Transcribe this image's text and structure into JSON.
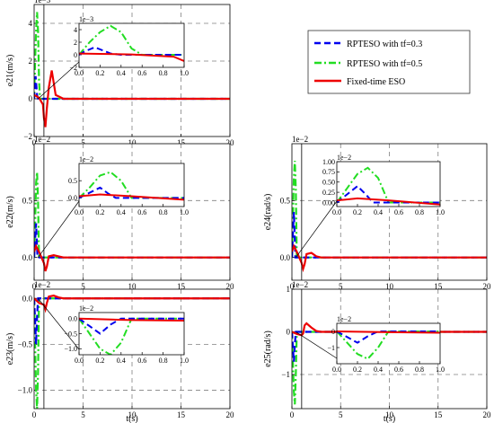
{
  "figure": {
    "legend": [
      {
        "label": "RPTESO with tf=0.3",
        "color": "#0000ee",
        "dash": "dash"
      },
      {
        "label": "RPTESO with tf=0.5",
        "color": "#22dd22",
        "dash": "dashdot"
      },
      {
        "label": "Fixed-time ESO",
        "color": "#ee0000",
        "dash": "solid"
      }
    ],
    "colors": {
      "blue": "#0000ee",
      "green": "#22dd22",
      "red": "#ee0000",
      "grid": "#808080"
    }
  },
  "chart_data": [
    {
      "id": "e21",
      "type": "line",
      "ylabel": "e21(m/s)",
      "xlabel": "",
      "exponent": "1e−3",
      "xlim": [
        0,
        20
      ],
      "ylim": [
        -2,
        5
      ],
      "xticks": [
        0,
        5,
        10,
        15,
        20
      ],
      "xticklabels": [
        "0",
        "5",
        "10",
        "15",
        "20"
      ],
      "yticks": [
        -2,
        0,
        2,
        4
      ],
      "yticklabels": [
        "−2",
        "0",
        "2",
        "4"
      ],
      "series": [
        {
          "key": "blue",
          "x": [
            0,
            0.05,
            0.15,
            0.3,
            0.4,
            1,
            20
          ],
          "y": [
            0,
            0.5,
            1.2,
            0.2,
            0,
            0,
            0
          ]
        },
        {
          "key": "green",
          "x": [
            0,
            0.05,
            0.1,
            0.2,
            0.3,
            0.4,
            0.5,
            0.6,
            1,
            20
          ],
          "y": [
            0,
            1.0,
            2.0,
            3.6,
            4.6,
            3.6,
            1.0,
            0,
            0,
            0
          ]
        },
        {
          "key": "red",
          "x": [
            0,
            0.2,
            0.5,
            0.9,
            1.0,
            1.15,
            1.3,
            1.5,
            1.8,
            2.2,
            3,
            5,
            20
          ],
          "y": [
            0.2,
            0.15,
            0.05,
            -0.3,
            -1.0,
            -1.5,
            -0.5,
            0.6,
            1.5,
            0.2,
            0,
            0,
            0
          ]
        }
      ],
      "inset": {
        "xlim": [
          0,
          1.0
        ],
        "ylim": [
          -2,
          5
        ],
        "xticks": [
          0,
          0.2,
          0.4,
          0.6,
          0.8,
          1.0
        ],
        "xticklabels": [
          "0.0",
          "0.2",
          "0.4",
          "0.6",
          "0.8",
          "1.0"
        ],
        "yticks": [
          -2,
          0,
          2,
          4
        ],
        "yticklabels": [
          "−2",
          "0",
          "2",
          "4"
        ],
        "exponent": "1e−3"
      }
    },
    {
      "id": "e22",
      "type": "line",
      "ylabel": "e22(m/s)",
      "xlabel": "",
      "exponent": "1e−2",
      "xlim": [
        0,
        20
      ],
      "ylim": [
        -0.2,
        1.0
      ],
      "xticks": [
        0,
        5,
        10,
        15,
        20
      ],
      "xticklabels": [
        "0",
        "5",
        "10",
        "15",
        "20"
      ],
      "yticks": [
        0,
        0.5
      ],
      "yticklabels": [
        "0.0",
        "0.5"
      ],
      "series": [
        {
          "key": "blue",
          "x": [
            0,
            0.1,
            0.2,
            0.28,
            0.35,
            1,
            20
          ],
          "y": [
            0,
            0.15,
            0.3,
            0.12,
            0,
            0,
            0
          ]
        },
        {
          "key": "green",
          "x": [
            0,
            0.1,
            0.2,
            0.3,
            0.4,
            0.5,
            1,
            20
          ],
          "y": [
            0,
            0.3,
            0.65,
            0.75,
            0.5,
            0,
            0,
            0
          ]
        },
        {
          "key": "red",
          "x": [
            0,
            0.2,
            0.5,
            1.0,
            1.15,
            1.3,
            1.5,
            2,
            2.5,
            3,
            5,
            20
          ],
          "y": [
            0.05,
            0.1,
            0.05,
            -0.05,
            -0.12,
            -0.08,
            0.01,
            0.02,
            0.01,
            0,
            0,
            0
          ]
        }
      ],
      "inset": {
        "xlim": [
          0,
          1.0
        ],
        "ylim": [
          -0.25,
          1.0
        ],
        "xticks": [
          0,
          0.2,
          0.4,
          0.6,
          0.8,
          1.0
        ],
        "xticklabels": [
          "0.0",
          "0.2",
          "0.4",
          "0.6",
          "0.8",
          "1.0"
        ],
        "yticks": [
          0,
          0.5
        ],
        "yticklabels": [
          "0.0",
          "0.5"
        ],
        "exponent": "1e−2"
      }
    },
    {
      "id": "e23",
      "type": "line",
      "ylabel": "e23(m/s)",
      "xlabel": "t(s)",
      "exponent": "1e−2",
      "xlim": [
        0,
        20
      ],
      "ylim": [
        -1.2,
        0.1
      ],
      "xticks": [
        0,
        5,
        10,
        15,
        20
      ],
      "xticklabels": [
        "0",
        "5",
        "10",
        "15",
        "20"
      ],
      "yticks": [
        -1.0,
        -0.5,
        0
      ],
      "yticklabels": [
        "−1.0",
        "−0.5",
        "0.0"
      ],
      "series": [
        {
          "key": "blue",
          "x": [
            0,
            0.1,
            0.2,
            0.3,
            0.4,
            1,
            20
          ],
          "y": [
            0,
            -0.25,
            -0.5,
            -0.2,
            0,
            0,
            0
          ]
        },
        {
          "key": "green",
          "x": [
            0,
            0.1,
            0.2,
            0.3,
            0.4,
            0.5,
            1,
            20
          ],
          "y": [
            0,
            -0.5,
            -1.0,
            -1.2,
            -0.8,
            0,
            0,
            0
          ]
        },
        {
          "key": "red",
          "x": [
            0,
            0.5,
            1.0,
            1.15,
            1.3,
            1.5,
            2,
            2.5,
            3,
            5,
            20
          ],
          "y": [
            0,
            -0.05,
            -0.07,
            -0.12,
            -0.05,
            0.02,
            0.03,
            0.01,
            0,
            0,
            0
          ]
        }
      ],
      "inset": {
        "xlim": [
          0,
          1.0
        ],
        "ylim": [
          -1.2,
          0.2
        ],
        "xticks": [
          0,
          0.2,
          0.4,
          0.6,
          0.8,
          1.0
        ],
        "xticklabels": [
          "0.0",
          "0.2",
          "0.4",
          "0.6",
          "0.8",
          "1.0"
        ],
        "yticks": [
          -1.0,
          -0.5,
          0
        ],
        "yticklabels": [
          "−1.0",
          "−0.5",
          "0.0"
        ],
        "exponent": "1e−2"
      }
    },
    {
      "id": "e24",
      "type": "line",
      "ylabel": "e24(rad/s)",
      "xlabel": "",
      "exponent": "1e−2",
      "xlim": [
        0,
        20
      ],
      "ylim": [
        -0.2,
        1.0
      ],
      "xticks": [
        0,
        5,
        10,
        15,
        20
      ],
      "xticklabels": [
        "0",
        "5",
        "10",
        "15",
        "20"
      ],
      "yticks": [
        0,
        0.5
      ],
      "yticklabels": [
        "0.0",
        "0.5"
      ],
      "series": [
        {
          "key": "blue",
          "x": [
            0,
            0.1,
            0.2,
            0.28,
            0.35,
            1,
            20
          ],
          "y": [
            0,
            0.2,
            0.4,
            0.2,
            0,
            0,
            0
          ]
        },
        {
          "key": "green",
          "x": [
            0,
            0.1,
            0.2,
            0.3,
            0.4,
            0.5,
            1,
            20
          ],
          "y": [
            0,
            0.35,
            0.7,
            0.85,
            0.6,
            0,
            0,
            0
          ]
        },
        {
          "key": "red",
          "x": [
            0,
            0.2,
            0.5,
            1.0,
            1.15,
            1.3,
            1.5,
            2,
            2.5,
            3,
            5,
            20
          ],
          "y": [
            0.05,
            0.1,
            0.05,
            -0.05,
            -0.1,
            -0.06,
            0.03,
            0.04,
            0.01,
            0,
            0,
            0
          ]
        }
      ],
      "inset": {
        "xlim": [
          0,
          1.0
        ],
        "ylim": [
          -0.1,
          1.0
        ],
        "xticks": [
          0,
          0.2,
          0.4,
          0.6,
          0.8,
          1.0
        ],
        "xticklabels": [
          "0.0",
          "0.2",
          "0.4",
          "0.6",
          "0.8",
          "1.0"
        ],
        "yticks": [
          0,
          0.25,
          0.5,
          0.75,
          1.0
        ],
        "yticklabels": [
          "0.00",
          "0.25",
          "0.50",
          "0.75",
          "1.00"
        ],
        "exponent": "1e−2"
      }
    },
    {
      "id": "e25",
      "type": "line",
      "ylabel": "e25(rad/s)",
      "xlabel": "t(s)",
      "exponent": "1e−2",
      "xlim": [
        0,
        20
      ],
      "ylim": [
        -1.8,
        1.0
      ],
      "xticks": [
        0,
        5,
        10,
        15,
        20
      ],
      "xticklabels": [
        "0",
        "5",
        "10",
        "15",
        "20"
      ],
      "yticks": [
        -1,
        0,
        1
      ],
      "yticklabels": [
        "−1",
        "0",
        "1"
      ],
      "series": [
        {
          "key": "blue",
          "x": [
            0,
            0.1,
            0.2,
            0.3,
            0.4,
            1,
            20
          ],
          "y": [
            0,
            -0.35,
            -0.7,
            -0.3,
            0,
            0,
            0
          ]
        },
        {
          "key": "green",
          "x": [
            0,
            0.1,
            0.2,
            0.3,
            0.4,
            0.5,
            1,
            20
          ],
          "y": [
            0,
            -0.7,
            -1.4,
            -1.7,
            -1.0,
            0,
            0,
            0
          ]
        },
        {
          "key": "red",
          "x": [
            0,
            0.5,
            1.0,
            1.15,
            1.3,
            1.5,
            2,
            2.5,
            3,
            5,
            20
          ],
          "y": [
            0,
            -0.05,
            -0.08,
            -0.04,
            0.15,
            0.2,
            0.1,
            0.02,
            0,
            0,
            0
          ]
        }
      ],
      "inset": {
        "xlim": [
          0,
          1.0
        ],
        "ylim": [
          -2,
          0.5
        ],
        "xticks": [
          0,
          0.2,
          0.4,
          0.6,
          0.8,
          1.0
        ],
        "xticklabels": [
          "0.0",
          "0.2",
          "0.4",
          "0.6",
          "0.8",
          "1.0"
        ],
        "yticks": [
          -1,
          0
        ],
        "yticklabels": [
          "−1",
          "0"
        ],
        "exponent": "1e−2"
      }
    }
  ]
}
